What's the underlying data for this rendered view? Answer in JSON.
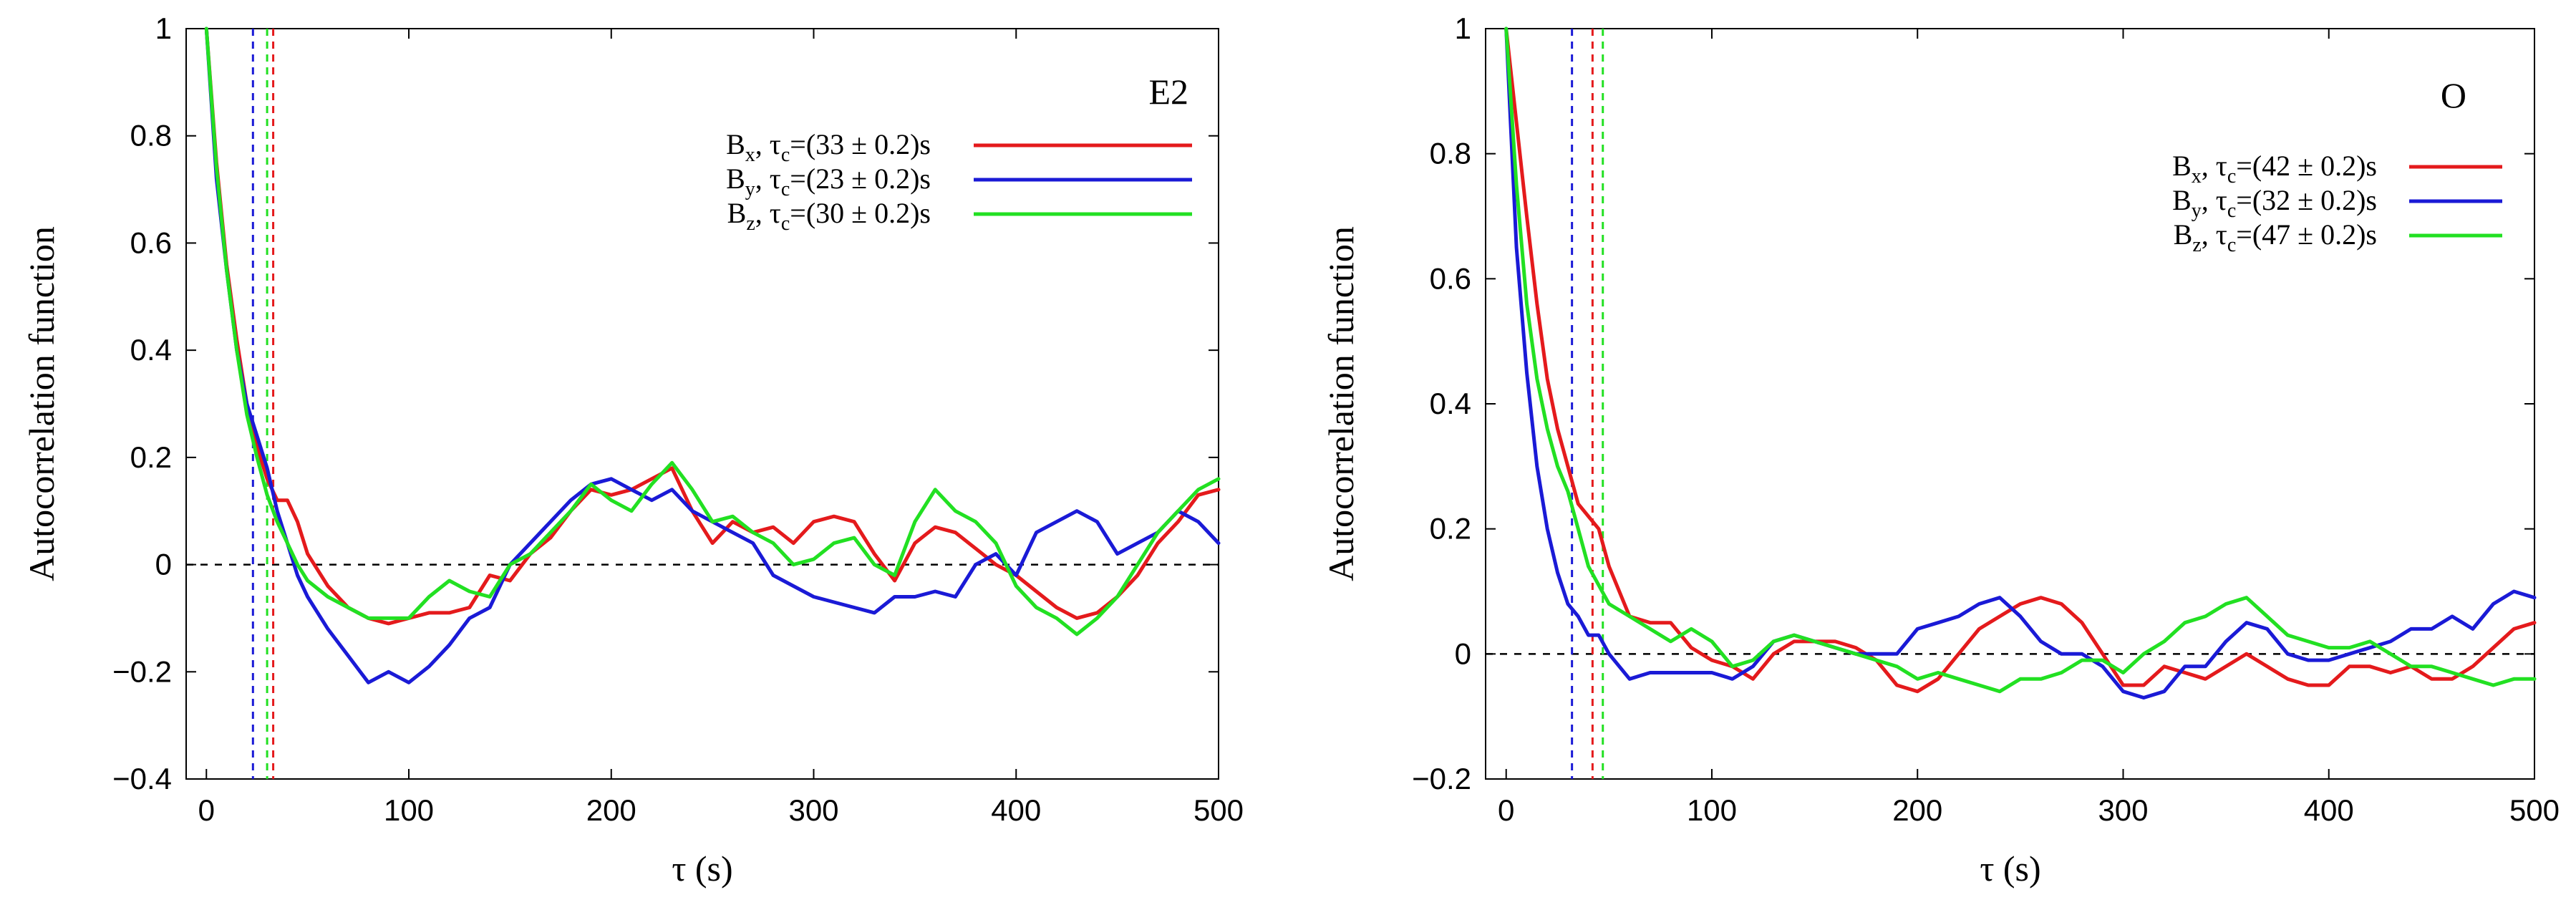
{
  "chart_data": [
    {
      "type": "line",
      "panel_label": "E2",
      "xlabel": "τ (s)",
      "ylabel": "Autocorrelation function",
      "xlim": [
        -10,
        500
      ],
      "ylim": [
        -0.4,
        1
      ],
      "xticks": [
        0,
        100,
        200,
        300,
        400,
        500
      ],
      "yticks": [
        -0.4,
        -0.2,
        0,
        0.2,
        0.4,
        0.6,
        0.8,
        1
      ],
      "ytick_labels": [
        "−0.4",
        "−0.2",
        "0",
        "0.2",
        "0.4",
        "0.6",
        "0.8",
        "1"
      ],
      "zero_line": true,
      "legend_position": "top-right",
      "series": [
        {
          "name": "Bx",
          "legend_base": "B",
          "legend_sub": "x",
          "legend_mid": ", τ",
          "legend_mid_sub": "c",
          "legend_tail": "=(33 ± 0.2)s",
          "color": "#e41a1c",
          "tau_c": 33,
          "x": [
            0,
            5,
            10,
            15,
            20,
            25,
            30,
            35,
            40,
            45,
            50,
            60,
            70,
            80,
            90,
            100,
            110,
            120,
            130,
            140,
            150,
            160,
            170,
            180,
            190,
            200,
            210,
            220,
            230,
            240,
            250,
            260,
            270,
            280,
            290,
            300,
            310,
            320,
            330,
            340,
            350,
            360,
            370,
            380,
            390,
            400,
            410,
            420,
            430,
            440,
            450,
            460,
            470,
            480,
            490,
            500
          ],
          "y": [
            1.0,
            0.75,
            0.56,
            0.42,
            0.3,
            0.22,
            0.16,
            0.12,
            0.12,
            0.08,
            0.02,
            -0.04,
            -0.08,
            -0.1,
            -0.11,
            -0.1,
            -0.09,
            -0.09,
            -0.08,
            -0.02,
            -0.03,
            0.02,
            0.05,
            0.1,
            0.14,
            0.13,
            0.14,
            0.16,
            0.18,
            0.1,
            0.04,
            0.08,
            0.06,
            0.07,
            0.04,
            0.08,
            0.09,
            0.08,
            0.02,
            -0.03,
            0.04,
            0.07,
            0.06,
            0.03,
            0.0,
            -0.02,
            -0.05,
            -0.08,
            -0.1,
            -0.09,
            -0.06,
            -0.02,
            0.04,
            0.08,
            0.13,
            0.14
          ]
        },
        {
          "name": "By",
          "legend_base": "B",
          "legend_sub": "y",
          "legend_mid": ", τ",
          "legend_mid_sub": "c",
          "legend_tail": "=(23 ± 0.2)s",
          "color": "#1a1ad6",
          "tau_c": 23,
          "x": [
            0,
            5,
            10,
            15,
            20,
            25,
            30,
            35,
            40,
            45,
            50,
            60,
            70,
            80,
            90,
            100,
            110,
            120,
            130,
            140,
            150,
            160,
            170,
            180,
            190,
            200,
            210,
            220,
            230,
            240,
            250,
            260,
            270,
            280,
            290,
            300,
            310,
            320,
            330,
            340,
            350,
            360,
            370,
            380,
            390,
            400,
            410,
            420,
            430,
            440,
            450,
            460,
            470,
            480,
            490,
            500
          ],
          "y": [
            1.0,
            0.72,
            0.55,
            0.4,
            0.3,
            0.24,
            0.18,
            0.1,
            0.04,
            -0.02,
            -0.06,
            -0.12,
            -0.17,
            -0.22,
            -0.2,
            -0.22,
            -0.19,
            -0.15,
            -0.1,
            -0.08,
            0.0,
            0.04,
            0.08,
            0.12,
            0.15,
            0.16,
            0.14,
            0.12,
            0.14,
            0.1,
            0.08,
            0.06,
            0.04,
            -0.02,
            -0.04,
            -0.06,
            -0.07,
            -0.08,
            -0.09,
            -0.06,
            -0.06,
            -0.05,
            -0.06,
            0.0,
            0.02,
            -0.02,
            0.06,
            0.08,
            0.1,
            0.08,
            0.02,
            0.04,
            0.06,
            0.1,
            0.08,
            0.04
          ]
        },
        {
          "name": "Bz",
          "legend_base": "B",
          "legend_sub": "z",
          "legend_mid": ", τ",
          "legend_mid_sub": "c",
          "legend_tail": "=(30 ± 0.2)s",
          "color": "#22e022",
          "tau_c": 30,
          "x": [
            0,
            5,
            10,
            15,
            20,
            25,
            30,
            35,
            40,
            45,
            50,
            60,
            70,
            80,
            90,
            100,
            110,
            120,
            130,
            140,
            150,
            160,
            170,
            180,
            190,
            200,
            210,
            220,
            230,
            240,
            250,
            260,
            270,
            280,
            290,
            300,
            310,
            320,
            330,
            340,
            350,
            360,
            370,
            380,
            390,
            400,
            410,
            420,
            430,
            440,
            450,
            460,
            470,
            480,
            490,
            500
          ],
          "y": [
            1.0,
            0.74,
            0.55,
            0.4,
            0.28,
            0.2,
            0.13,
            0.08,
            0.04,
            0.0,
            -0.03,
            -0.06,
            -0.08,
            -0.1,
            -0.1,
            -0.1,
            -0.06,
            -0.03,
            -0.05,
            -0.06,
            0.0,
            0.02,
            0.06,
            0.1,
            0.15,
            0.12,
            0.1,
            0.15,
            0.19,
            0.14,
            0.08,
            0.09,
            0.06,
            0.04,
            0.0,
            0.01,
            0.04,
            0.05,
            0.0,
            -0.02,
            0.08,
            0.14,
            0.1,
            0.08,
            0.04,
            -0.04,
            -0.08,
            -0.1,
            -0.13,
            -0.1,
            -0.06,
            0.0,
            0.06,
            0.1,
            0.14,
            0.16
          ]
        }
      ]
    },
    {
      "type": "line",
      "panel_label": "O",
      "xlabel": "τ (s)",
      "ylabel": "Autocorrelation function",
      "xlim": [
        -10,
        500
      ],
      "ylim": [
        -0.2,
        1
      ],
      "xticks": [
        0,
        100,
        200,
        300,
        400,
        500
      ],
      "yticks": [
        -0.2,
        0,
        0.2,
        0.4,
        0.6,
        0.8,
        1
      ],
      "ytick_labels": [
        "−0.2",
        "0",
        "0.2",
        "0.4",
        "0.6",
        "0.8",
        "1"
      ],
      "zero_line": true,
      "legend_position": "top-right",
      "series": [
        {
          "name": "Bx",
          "legend_base": "B",
          "legend_sub": "x",
          "legend_mid": ", τ",
          "legend_mid_sub": "c",
          "legend_tail": "=(42 ± 0.2)s",
          "color": "#e41a1c",
          "tau_c": 42,
          "x": [
            0,
            5,
            10,
            15,
            20,
            25,
            30,
            35,
            40,
            45,
            50,
            60,
            70,
            80,
            90,
            100,
            110,
            120,
            130,
            140,
            150,
            160,
            170,
            180,
            190,
            200,
            210,
            220,
            230,
            240,
            250,
            260,
            270,
            280,
            290,
            300,
            310,
            320,
            330,
            340,
            350,
            360,
            370,
            380,
            390,
            400,
            410,
            420,
            430,
            440,
            450,
            460,
            470,
            480,
            490,
            500
          ],
          "y": [
            1.0,
            0.85,
            0.7,
            0.56,
            0.44,
            0.36,
            0.3,
            0.24,
            0.22,
            0.2,
            0.14,
            0.06,
            0.05,
            0.05,
            0.01,
            -0.01,
            -0.02,
            -0.04,
            0.0,
            0.02,
            0.02,
            0.02,
            0.01,
            -0.01,
            -0.05,
            -0.06,
            -0.04,
            0.0,
            0.04,
            0.06,
            0.08,
            0.09,
            0.08,
            0.05,
            0.0,
            -0.05,
            -0.05,
            -0.02,
            -0.03,
            -0.04,
            -0.02,
            0.0,
            -0.02,
            -0.04,
            -0.05,
            -0.05,
            -0.02,
            -0.02,
            -0.03,
            -0.02,
            -0.04,
            -0.04,
            -0.02,
            0.01,
            0.04,
            0.05
          ]
        },
        {
          "name": "By",
          "legend_base": "B",
          "legend_sub": "y",
          "legend_mid": ", τ",
          "legend_mid_sub": "c",
          "legend_tail": "=(32 ± 0.2)s",
          "color": "#1a1ad6",
          "tau_c": 32,
          "x": [
            0,
            5,
            10,
            15,
            20,
            25,
            30,
            35,
            40,
            45,
            50,
            60,
            70,
            80,
            90,
            100,
            110,
            120,
            130,
            140,
            150,
            160,
            170,
            180,
            190,
            200,
            210,
            220,
            230,
            240,
            250,
            260,
            270,
            280,
            290,
            300,
            310,
            320,
            330,
            340,
            350,
            360,
            370,
            380,
            390,
            400,
            410,
            420,
            430,
            440,
            450,
            460,
            470,
            480,
            490,
            500
          ],
          "y": [
            1.0,
            0.65,
            0.45,
            0.3,
            0.2,
            0.13,
            0.08,
            0.06,
            0.03,
            0.03,
            0.0,
            -0.04,
            -0.03,
            -0.03,
            -0.03,
            -0.03,
            -0.04,
            -0.02,
            0.02,
            0.03,
            0.02,
            0.01,
            0.0,
            0.0,
            0.0,
            0.04,
            0.05,
            0.06,
            0.08,
            0.09,
            0.06,
            0.02,
            0.0,
            0.0,
            -0.02,
            -0.06,
            -0.07,
            -0.06,
            -0.02,
            -0.02,
            0.02,
            0.05,
            0.04,
            0.0,
            -0.01,
            -0.01,
            0.0,
            0.01,
            0.02,
            0.04,
            0.04,
            0.06,
            0.04,
            0.08,
            0.1,
            0.09
          ]
        },
        {
          "name": "Bz",
          "legend_base": "B",
          "legend_sub": "z",
          "legend_mid": ", τ",
          "legend_mid_sub": "c",
          "legend_tail": "=(47 ± 0.2)s",
          "color": "#22e022",
          "tau_c": 47,
          "x": [
            0,
            5,
            10,
            15,
            20,
            25,
            30,
            35,
            40,
            45,
            50,
            60,
            70,
            80,
            90,
            100,
            110,
            120,
            130,
            140,
            150,
            160,
            170,
            180,
            190,
            200,
            210,
            220,
            230,
            240,
            250,
            260,
            270,
            280,
            290,
            300,
            310,
            320,
            330,
            340,
            350,
            360,
            370,
            380,
            390,
            400,
            410,
            420,
            430,
            440,
            450,
            460,
            470,
            480,
            490,
            500
          ],
          "y": [
            1.0,
            0.75,
            0.56,
            0.44,
            0.36,
            0.3,
            0.26,
            0.2,
            0.14,
            0.11,
            0.08,
            0.06,
            0.04,
            0.02,
            0.04,
            0.02,
            -0.02,
            -0.01,
            0.02,
            0.03,
            0.02,
            0.01,
            0.0,
            -0.01,
            -0.02,
            -0.04,
            -0.03,
            -0.04,
            -0.05,
            -0.06,
            -0.04,
            -0.04,
            -0.03,
            -0.01,
            -0.01,
            -0.03,
            0.0,
            0.02,
            0.05,
            0.06,
            0.08,
            0.09,
            0.06,
            0.03,
            0.02,
            0.01,
            0.01,
            0.02,
            0.0,
            -0.02,
            -0.02,
            -0.03,
            -0.04,
            -0.05,
            -0.04,
            -0.04
          ]
        }
      ]
    }
  ]
}
